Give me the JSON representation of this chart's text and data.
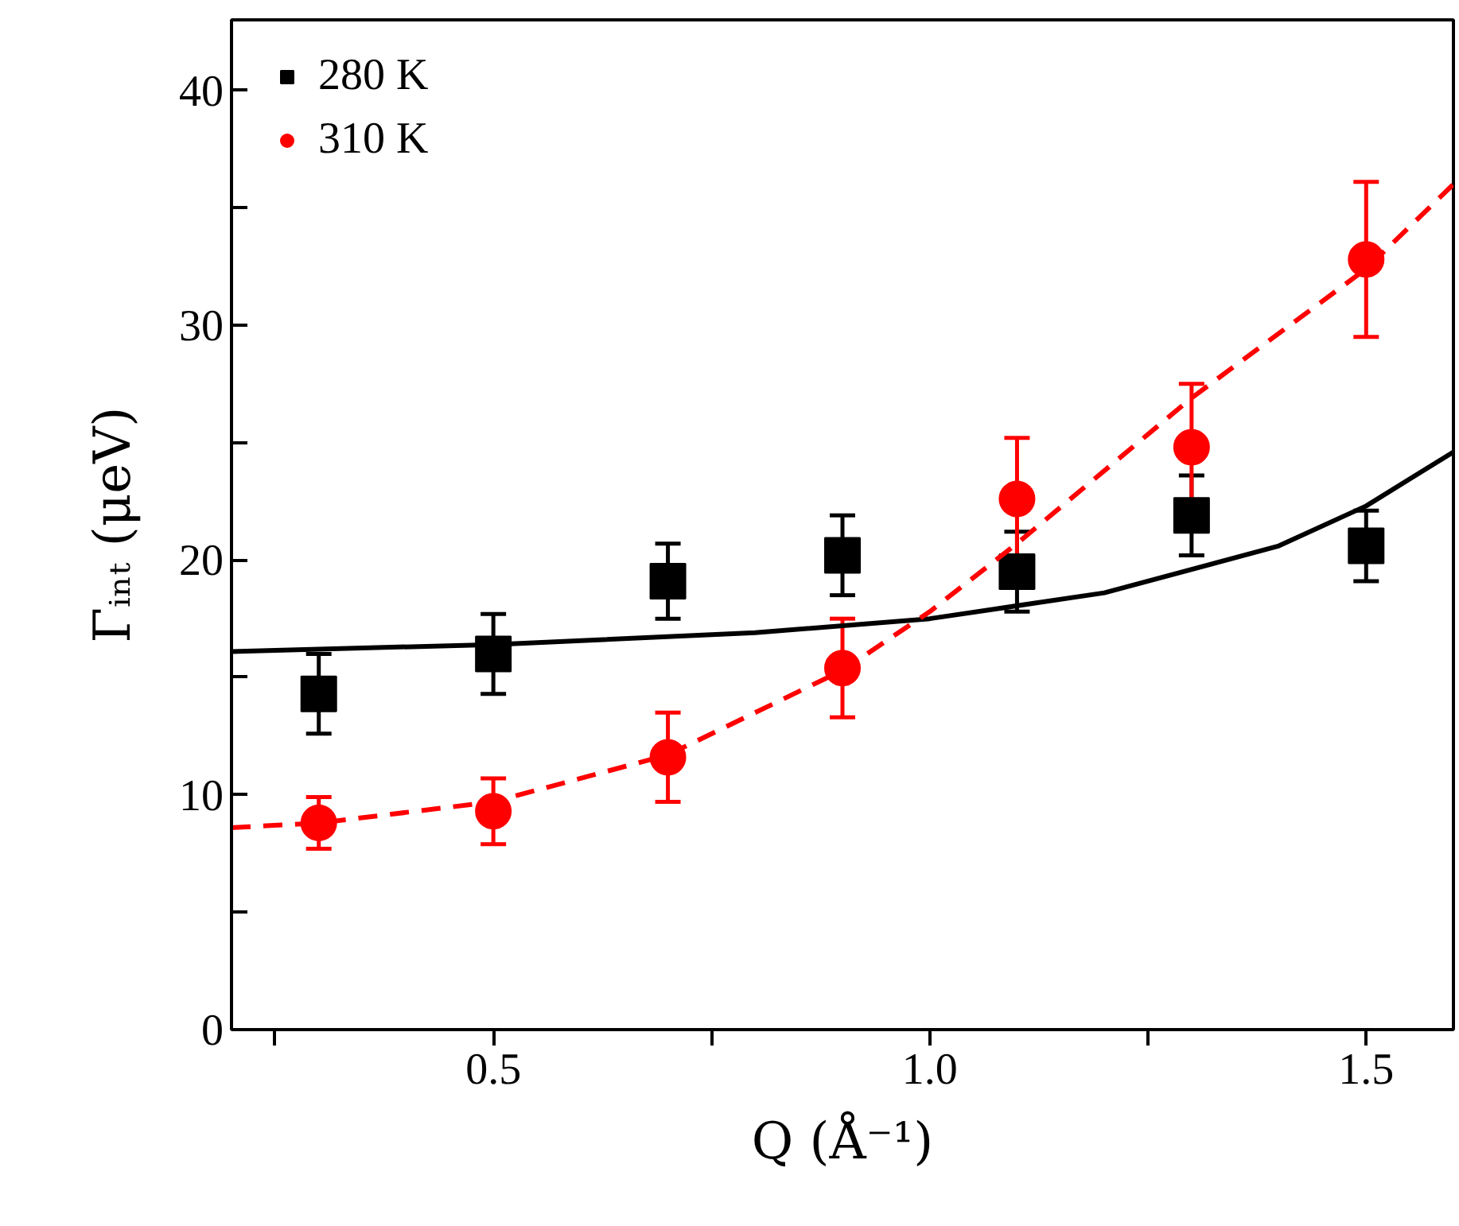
{
  "chart_data": {
    "type": "scatter",
    "xlabel": "Q (Å⁻¹)",
    "ylabel": "Γᵢₙₜ (μeV)",
    "xlim": [
      0.2,
      1.6
    ],
    "ylim": [
      0,
      43
    ],
    "xticks": [
      {
        "value": 0.25,
        "label": null
      },
      0.5,
      {
        "value": 0.75,
        "label": null
      },
      {
        "value": 1.0,
        "label": "1.0"
      },
      {
        "value": 1.25,
        "label": null
      },
      1.5
    ],
    "yticks": [
      0,
      {
        "value": 5,
        "label": null
      },
      10,
      {
        "value": 15,
        "label": null
      },
      20,
      {
        "value": 25,
        "label": null
      },
      30,
      {
        "value": 35,
        "label": null
      },
      40
    ],
    "grid": false,
    "legend": "top left",
    "series": [
      {
        "name": "280 K",
        "marker": "square",
        "color": "#000000",
        "x": [
          0.3,
          0.5,
          0.7,
          0.9,
          1.1,
          1.3,
          1.5
        ],
        "values": [
          14.3,
          16.0,
          19.1,
          20.2,
          19.5,
          21.9,
          20.6
        ],
        "errors": [
          1.7,
          1.7,
          1.6,
          1.7,
          1.7,
          1.7,
          1.5
        ]
      },
      {
        "name": "310 K",
        "marker": "circle",
        "color": "#ff0000",
        "x": [
          0.3,
          0.5,
          0.7,
          0.9,
          1.1,
          1.3,
          1.5
        ],
        "values": [
          8.8,
          9.3,
          11.6,
          15.4,
          22.6,
          24.8,
          32.8
        ],
        "errors": [
          1.1,
          1.4,
          1.9,
          2.1,
          2.6,
          2.7,
          3.3
        ]
      },
      {
        "type": "line",
        "line_style": "solid",
        "color": "#000000",
        "x": [
          0.2,
          0.5,
          0.8,
          1.0,
          1.2,
          1.4,
          1.5,
          1.6
        ],
        "values": [
          16.1,
          16.4,
          16.9,
          17.5,
          18.6,
          20.6,
          22.3,
          24.6
        ]
      },
      {
        "type": "line",
        "line_style": "dashed",
        "color": "#ff0000",
        "x": [
          0.2,
          0.3,
          0.5,
          0.7,
          0.9,
          1.0,
          1.1,
          1.3,
          1.5,
          1.6
        ],
        "values": [
          8.6,
          8.8,
          9.7,
          11.7,
          15.3,
          17.8,
          20.7,
          26.9,
          32.4,
          36.0
        ]
      }
    ]
  }
}
